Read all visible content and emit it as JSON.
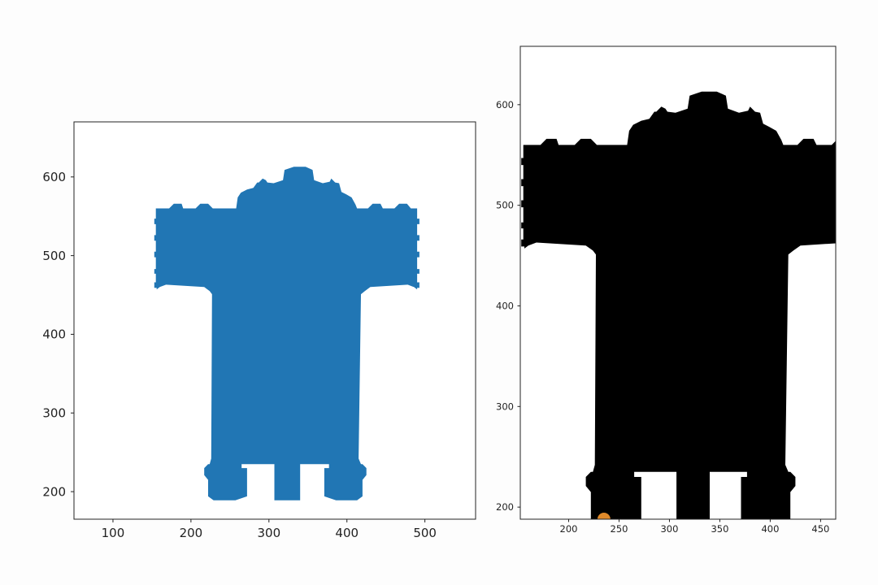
{
  "colors": {
    "left_fill": "#2176b4",
    "right_fill": "#000000",
    "background": "#fdfdfd",
    "marker": "#e08a2a"
  },
  "chart_data": [
    {
      "type": "area",
      "title": "",
      "xlabel": "",
      "ylabel": "",
      "xlim": [
        50,
        565
      ],
      "ylim": [
        165,
        670
      ],
      "xticks": [
        100,
        200,
        300,
        400,
        500
      ],
      "yticks": [
        200,
        300,
        400,
        500,
        600
      ],
      "grid": false,
      "series": [
        {
          "fill": "left_fill",
          "points": [
            [
              229,
              189
            ],
            [
              222,
              194
            ],
            [
              222,
              215
            ],
            [
              217,
              221
            ],
            [
              217,
              230
            ],
            [
              222,
              235
            ],
            [
              224,
              235
            ],
            [
              226,
              242
            ],
            [
              227,
              451
            ],
            [
              224,
              455
            ],
            [
              217,
              460
            ],
            [
              168,
              463
            ],
            [
              160,
              460
            ],
            [
              156,
              457
            ],
            [
              156,
              459
            ],
            [
              153,
              459
            ],
            [
              153,
              466
            ],
            [
              155,
              466
            ],
            [
              155,
              477
            ],
            [
              153,
              477
            ],
            [
              153,
              483
            ],
            [
              155,
              483
            ],
            [
              155,
              498
            ],
            [
              153,
              498
            ],
            [
              153,
              505
            ],
            [
              155,
              505
            ],
            [
              155,
              519
            ],
            [
              153,
              519
            ],
            [
              153,
              526
            ],
            [
              155,
              526
            ],
            [
              155,
              540
            ],
            [
              153,
              540
            ],
            [
              153,
              547
            ],
            [
              155,
              547
            ],
            [
              155,
              560
            ],
            [
              172,
              560
            ],
            [
              178,
              566
            ],
            [
              188,
              566
            ],
            [
              190,
              560
            ],
            [
              206,
              560
            ],
            [
              212,
              566
            ],
            [
              222,
              566
            ],
            [
              228,
              560
            ],
            [
              258,
              560
            ],
            [
              260,
              574
            ],
            [
              264,
              580
            ],
            [
              272,
              584
            ],
            [
              280,
              586
            ],
            [
              285,
              593
            ],
            [
              287,
              593
            ],
            [
              292,
              598
            ],
            [
              296,
              596
            ],
            [
              298,
              593
            ],
            [
              306,
              592
            ],
            [
              318,
              596
            ],
            [
              320,
              609
            ],
            [
              332,
              613
            ],
            [
              347,
              613
            ],
            [
              356,
              609
            ],
            [
              358,
              596
            ],
            [
              369,
              592
            ],
            [
              378,
              594
            ],
            [
              380,
              598
            ],
            [
              385,
              593
            ],
            [
              390,
              592
            ],
            [
              393,
              581
            ],
            [
              399,
              578
            ],
            [
              406,
              574
            ],
            [
              411,
              565
            ],
            [
              413,
              560
            ],
            [
              427,
              560
            ],
            [
              433,
              566
            ],
            [
              443,
              566
            ],
            [
              446,
              560
            ],
            [
              461,
              560
            ],
            [
              467,
              566
            ],
            [
              477,
              566
            ],
            [
              482,
              560
            ],
            [
              490,
              560
            ],
            [
              490,
              547
            ],
            [
              493,
              547
            ],
            [
              493,
              540
            ],
            [
              490,
              540
            ],
            [
              490,
              526
            ],
            [
              493,
              526
            ],
            [
              493,
              519
            ],
            [
              490,
              519
            ],
            [
              490,
              505
            ],
            [
              493,
              505
            ],
            [
              493,
              498
            ],
            [
              490,
              498
            ],
            [
              490,
              483
            ],
            [
              493,
              483
            ],
            [
              493,
              477
            ],
            [
              490,
              477
            ],
            [
              490,
              466
            ],
            [
              493,
              466
            ],
            [
              493,
              459
            ],
            [
              490,
              459
            ],
            [
              490,
              457
            ],
            [
              486,
              460
            ],
            [
              478,
              463
            ],
            [
              430,
              460
            ],
            [
              423,
              455
            ],
            [
              418,
              451
            ],
            [
              415,
              242
            ],
            [
              418,
              235
            ],
            [
              420,
              235
            ],
            [
              425,
              230
            ],
            [
              425,
              221
            ],
            [
              420,
              215
            ],
            [
              420,
              194
            ],
            [
              413,
              189
            ],
            [
              386,
              189
            ],
            [
              371,
              194
            ],
            [
              371,
              230
            ],
            [
              377,
              230
            ],
            [
              377,
              235
            ],
            [
              340,
              235
            ],
            [
              340,
              189
            ],
            [
              307,
              189
            ],
            [
              307,
              235
            ],
            [
              265,
              235
            ],
            [
              265,
              230
            ],
            [
              272,
              230
            ],
            [
              272,
              194
            ],
            [
              257,
              189
            ]
          ]
        }
      ]
    },
    {
      "type": "area",
      "title": "",
      "xlabel": "",
      "ylabel": "",
      "xlim": [
        152,
        465
      ],
      "ylim": [
        188,
        658
      ],
      "xticks": [
        200,
        250,
        300,
        350,
        400,
        450
      ],
      "yticks": [
        200,
        300,
        400,
        500,
        600
      ],
      "grid": false,
      "series": [
        {
          "fill": "right_fill",
          "points": [
            [
              222,
              188
            ],
            [
              222,
              215
            ],
            [
              217,
              221
            ],
            [
              217,
              230
            ],
            [
              222,
              235
            ],
            [
              224,
              235
            ],
            [
              226,
              242
            ],
            [
              227,
              451
            ],
            [
              224,
              455
            ],
            [
              217,
              460
            ],
            [
              168,
              463
            ],
            [
              160,
              460
            ],
            [
              156,
              457
            ],
            [
              156,
              459
            ],
            [
              153,
              459
            ],
            [
              153,
              466
            ],
            [
              155,
              466
            ],
            [
              155,
              477
            ],
            [
              153,
              477
            ],
            [
              153,
              483
            ],
            [
              155,
              483
            ],
            [
              155,
              498
            ],
            [
              153,
              498
            ],
            [
              153,
              505
            ],
            [
              155,
              505
            ],
            [
              155,
              519
            ],
            [
              153,
              519
            ],
            [
              153,
              526
            ],
            [
              155,
              526
            ],
            [
              155,
              540
            ],
            [
              153,
              540
            ],
            [
              153,
              547
            ],
            [
              155,
              547
            ],
            [
              155,
              560
            ],
            [
              172,
              560
            ],
            [
              178,
              566
            ],
            [
              188,
              566
            ],
            [
              190,
              560
            ],
            [
              206,
              560
            ],
            [
              212,
              566
            ],
            [
              222,
              566
            ],
            [
              228,
              560
            ],
            [
              258,
              560
            ],
            [
              260,
              574
            ],
            [
              264,
              580
            ],
            [
              272,
              584
            ],
            [
              280,
              586
            ],
            [
              285,
              593
            ],
            [
              287,
              593
            ],
            [
              292,
              598
            ],
            [
              296,
              596
            ],
            [
              298,
              593
            ],
            [
              306,
              592
            ],
            [
              318,
              596
            ],
            [
              320,
              609
            ],
            [
              332,
              613
            ],
            [
              347,
              613
            ],
            [
              356,
              609
            ],
            [
              358,
              596
            ],
            [
              369,
              592
            ],
            [
              378,
              594
            ],
            [
              380,
              598
            ],
            [
              385,
              593
            ],
            [
              390,
              592
            ],
            [
              393,
              581
            ],
            [
              399,
              578
            ],
            [
              406,
              574
            ],
            [
              411,
              565
            ],
            [
              413,
              560
            ],
            [
              427,
              560
            ],
            [
              433,
              566
            ],
            [
              443,
              566
            ],
            [
              446,
              560
            ],
            [
              461,
              560
            ],
            [
              467,
              566
            ],
            [
              477,
              566
            ],
            [
              482,
              560
            ],
            [
              490,
              560
            ],
            [
              490,
              547
            ],
            [
              493,
              547
            ],
            [
              493,
              540
            ],
            [
              490,
              540
            ],
            [
              490,
              526
            ],
            [
              493,
              526
            ],
            [
              493,
              519
            ],
            [
              490,
              519
            ],
            [
              490,
              505
            ],
            [
              493,
              505
            ],
            [
              493,
              498
            ],
            [
              490,
              498
            ],
            [
              490,
              483
            ],
            [
              493,
              483
            ],
            [
              493,
              477
            ],
            [
              490,
              477
            ],
            [
              490,
              466
            ],
            [
              493,
              466
            ],
            [
              493,
              459
            ],
            [
              490,
              459
            ],
            [
              490,
              457
            ],
            [
              486,
              460
            ],
            [
              478,
              463
            ],
            [
              430,
              460
            ],
            [
              423,
              455
            ],
            [
              418,
              451
            ],
            [
              415,
              242
            ],
            [
              418,
              235
            ],
            [
              420,
              235
            ],
            [
              425,
              230
            ],
            [
              425,
              221
            ],
            [
              420,
              215
            ],
            [
              420,
              188
            ],
            [
              371,
              188
            ],
            [
              371,
              230
            ],
            [
              377,
              230
            ],
            [
              377,
              235
            ],
            [
              340,
              235
            ],
            [
              340,
              188
            ],
            [
              307,
              188
            ],
            [
              307,
              235
            ],
            [
              265,
              235
            ],
            [
              265,
              230
            ],
            [
              272,
              230
            ],
            [
              272,
              188
            ]
          ]
        }
      ]
    }
  ]
}
